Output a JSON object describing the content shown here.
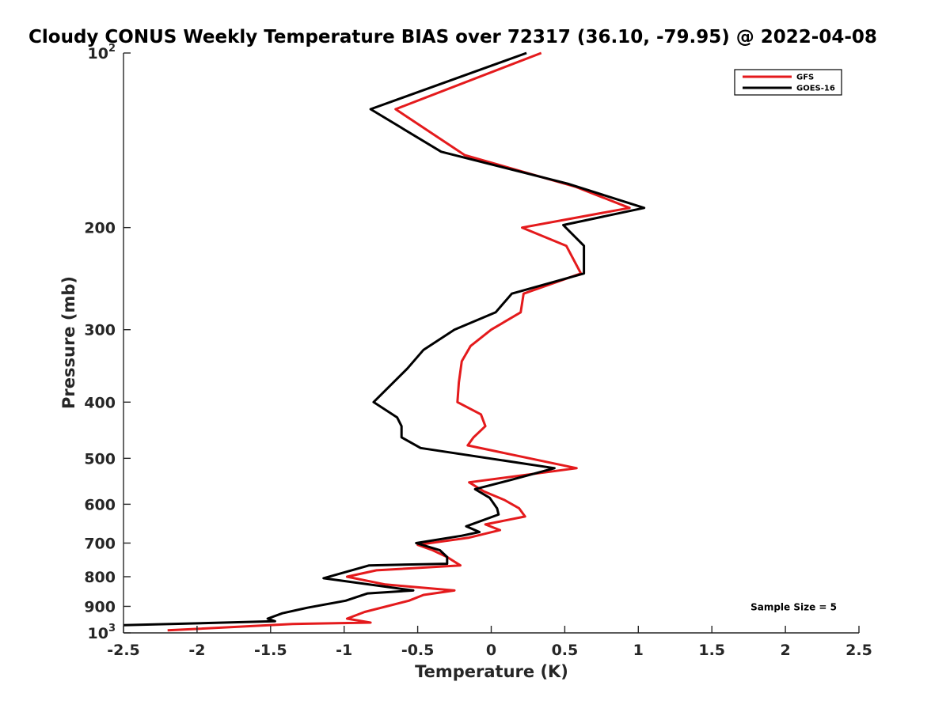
{
  "chart_data": {
    "type": "line",
    "title": "Cloudy CONUS Weekly Temperature BIAS over 72317 (36.10, -79.95) @ 2022-04-08",
    "xlabel": "Temperature (K)",
    "ylabel": "Pressure (mb)",
    "xlim": [
      -2.5,
      2.5
    ],
    "ylim": [
      1000,
      100
    ],
    "y_scale": "log",
    "y_reversed": true,
    "grid": false,
    "legend_position": "top-right",
    "x_ticks": [
      -2.5,
      -2,
      -1.5,
      -1,
      -0.5,
      0,
      0.5,
      1,
      1.5,
      2,
      2.5
    ],
    "x_tick_labels": [
      "-2.5",
      "-2",
      "-1.5",
      "-1",
      "-0.5",
      "0",
      "0.5",
      "1",
      "1.5",
      "2",
      "2.5"
    ],
    "y_ticks": [
      {
        "value": 100,
        "base": "10",
        "exp": "2"
      },
      {
        "value": 200,
        "label": "200"
      },
      {
        "value": 300,
        "label": "300"
      },
      {
        "value": 400,
        "label": "400"
      },
      {
        "value": 500,
        "label": "500"
      },
      {
        "value": 600,
        "label": "600"
      },
      {
        "value": 700,
        "label": "700"
      },
      {
        "value": 800,
        "label": "800"
      },
      {
        "value": 900,
        "label": "900"
      },
      {
        "value": 1000,
        "base": "10",
        "exp": "3"
      }
    ],
    "series": [
      {
        "name": "GFS",
        "color": "#e41a1c",
        "points": [
          {
            "x": 0.34,
            "y": 100
          },
          {
            "x": -0.65,
            "y": 125
          },
          {
            "x": -0.18,
            "y": 150
          },
          {
            "x": 0.57,
            "y": 170
          },
          {
            "x": 0.94,
            "y": 185
          },
          {
            "x": 0.21,
            "y": 200
          },
          {
            "x": 0.51,
            "y": 215
          },
          {
            "x": 0.61,
            "y": 240
          },
          {
            "x": 0.22,
            "y": 260
          },
          {
            "x": 0.2,
            "y": 280
          },
          {
            "x": 0.0,
            "y": 300
          },
          {
            "x": -0.14,
            "y": 320
          },
          {
            "x": -0.2,
            "y": 340
          },
          {
            "x": -0.22,
            "y": 370
          },
          {
            "x": -0.23,
            "y": 400
          },
          {
            "x": -0.07,
            "y": 420
          },
          {
            "x": -0.04,
            "y": 440
          },
          {
            "x": -0.12,
            "y": 460
          },
          {
            "x": -0.16,
            "y": 475
          },
          {
            "x": 0.58,
            "y": 520
          },
          {
            "x": -0.15,
            "y": 550
          },
          {
            "x": -0.05,
            "y": 570
          },
          {
            "x": 0.09,
            "y": 590
          },
          {
            "x": 0.19,
            "y": 610
          },
          {
            "x": 0.23,
            "y": 630
          },
          {
            "x": -0.04,
            "y": 650
          },
          {
            "x": 0.06,
            "y": 665
          },
          {
            "x": -0.15,
            "y": 685
          },
          {
            "x": -0.5,
            "y": 705
          },
          {
            "x": -0.4,
            "y": 720
          },
          {
            "x": -0.3,
            "y": 740
          },
          {
            "x": -0.21,
            "y": 765
          },
          {
            "x": -0.78,
            "y": 780
          },
          {
            "x": -0.98,
            "y": 800
          },
          {
            "x": -0.72,
            "y": 825
          },
          {
            "x": -0.25,
            "y": 845
          },
          {
            "x": -0.46,
            "y": 860
          },
          {
            "x": -0.56,
            "y": 880
          },
          {
            "x": -0.86,
            "y": 920
          },
          {
            "x": -0.98,
            "y": 945
          },
          {
            "x": -0.82,
            "y": 960
          },
          {
            "x": -1.35,
            "y": 965
          },
          {
            "x": -2.2,
            "y": 990
          }
        ]
      },
      {
        "name": "GOES-16",
        "color": "#000000",
        "points": [
          {
            "x": 0.24,
            "y": 100
          },
          {
            "x": -0.82,
            "y": 125
          },
          {
            "x": -0.34,
            "y": 148
          },
          {
            "x": 0.52,
            "y": 168
          },
          {
            "x": 1.04,
            "y": 185
          },
          {
            "x": 0.49,
            "y": 198
          },
          {
            "x": 0.63,
            "y": 215
          },
          {
            "x": 0.63,
            "y": 240
          },
          {
            "x": 0.14,
            "y": 260
          },
          {
            "x": 0.03,
            "y": 280
          },
          {
            "x": -0.25,
            "y": 300
          },
          {
            "x": -0.46,
            "y": 325
          },
          {
            "x": -0.57,
            "y": 350
          },
          {
            "x": -0.8,
            "y": 400
          },
          {
            "x": -0.64,
            "y": 425
          },
          {
            "x": -0.61,
            "y": 440
          },
          {
            "x": -0.61,
            "y": 460
          },
          {
            "x": -0.48,
            "y": 480
          },
          {
            "x": 0.43,
            "y": 520
          },
          {
            "x": 0.13,
            "y": 545
          },
          {
            "x": -0.11,
            "y": 565
          },
          {
            "x": -0.01,
            "y": 585
          },
          {
            "x": 0.04,
            "y": 610
          },
          {
            "x": 0.05,
            "y": 625
          },
          {
            "x": -0.17,
            "y": 655
          },
          {
            "x": -0.08,
            "y": 670
          },
          {
            "x": -0.2,
            "y": 680
          },
          {
            "x": -0.51,
            "y": 700
          },
          {
            "x": -0.35,
            "y": 720
          },
          {
            "x": -0.3,
            "y": 740
          },
          {
            "x": -0.3,
            "y": 760
          },
          {
            "x": -0.83,
            "y": 765
          },
          {
            "x": -1.14,
            "y": 805
          },
          {
            "x": -0.53,
            "y": 845
          },
          {
            "x": -0.84,
            "y": 855
          },
          {
            "x": -0.99,
            "y": 880
          },
          {
            "x": -1.25,
            "y": 905
          },
          {
            "x": -1.42,
            "y": 925
          },
          {
            "x": -1.52,
            "y": 945
          },
          {
            "x": -1.47,
            "y": 955
          },
          {
            "x": -2.5,
            "y": 970
          }
        ]
      }
    ],
    "annotations": [
      {
        "text": "Sample Size = 5",
        "x": 2.0,
        "y": 900
      }
    ]
  }
}
